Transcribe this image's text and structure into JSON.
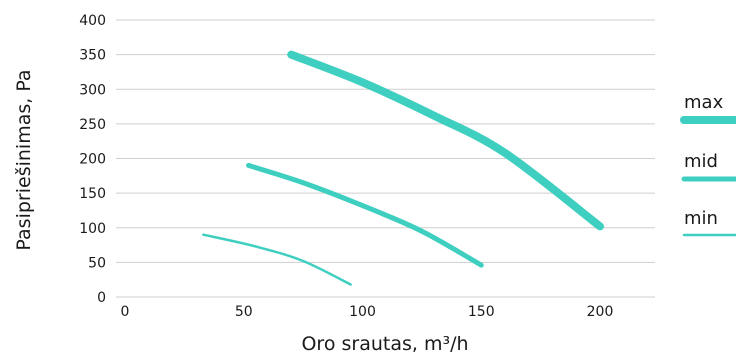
{
  "chart_data": {
    "type": "line",
    "title": "",
    "xlabel": "Oro srautas, m³/h",
    "ylabel": "Pasipriešinimas, Pa",
    "xlim": [
      0,
      220
    ],
    "ylim": [
      0,
      400
    ],
    "x_ticks": [
      0,
      50,
      100,
      150,
      200
    ],
    "y_ticks": [
      0,
      50,
      100,
      150,
      200,
      250,
      300,
      350,
      400
    ],
    "grid": "horizontal",
    "legend_position": "right",
    "series_color": "#3ecfc0",
    "grid_color": "#cfcfcf",
    "series": [
      {
        "name": "max",
        "x": [
          70,
          100,
          130,
          160,
          200
        ],
        "y": [
          350,
          310,
          262,
          208,
          102
        ],
        "weight": "thick"
      },
      {
        "name": "mid",
        "x": [
          52,
          75,
          100,
          125,
          150
        ],
        "y": [
          190,
          165,
          132,
          95,
          46
        ],
        "weight": "medium"
      },
      {
        "name": "min",
        "x": [
          33,
          55,
          75,
          95
        ],
        "y": [
          90,
          73,
          52,
          18
        ],
        "weight": "thin"
      }
    ]
  }
}
